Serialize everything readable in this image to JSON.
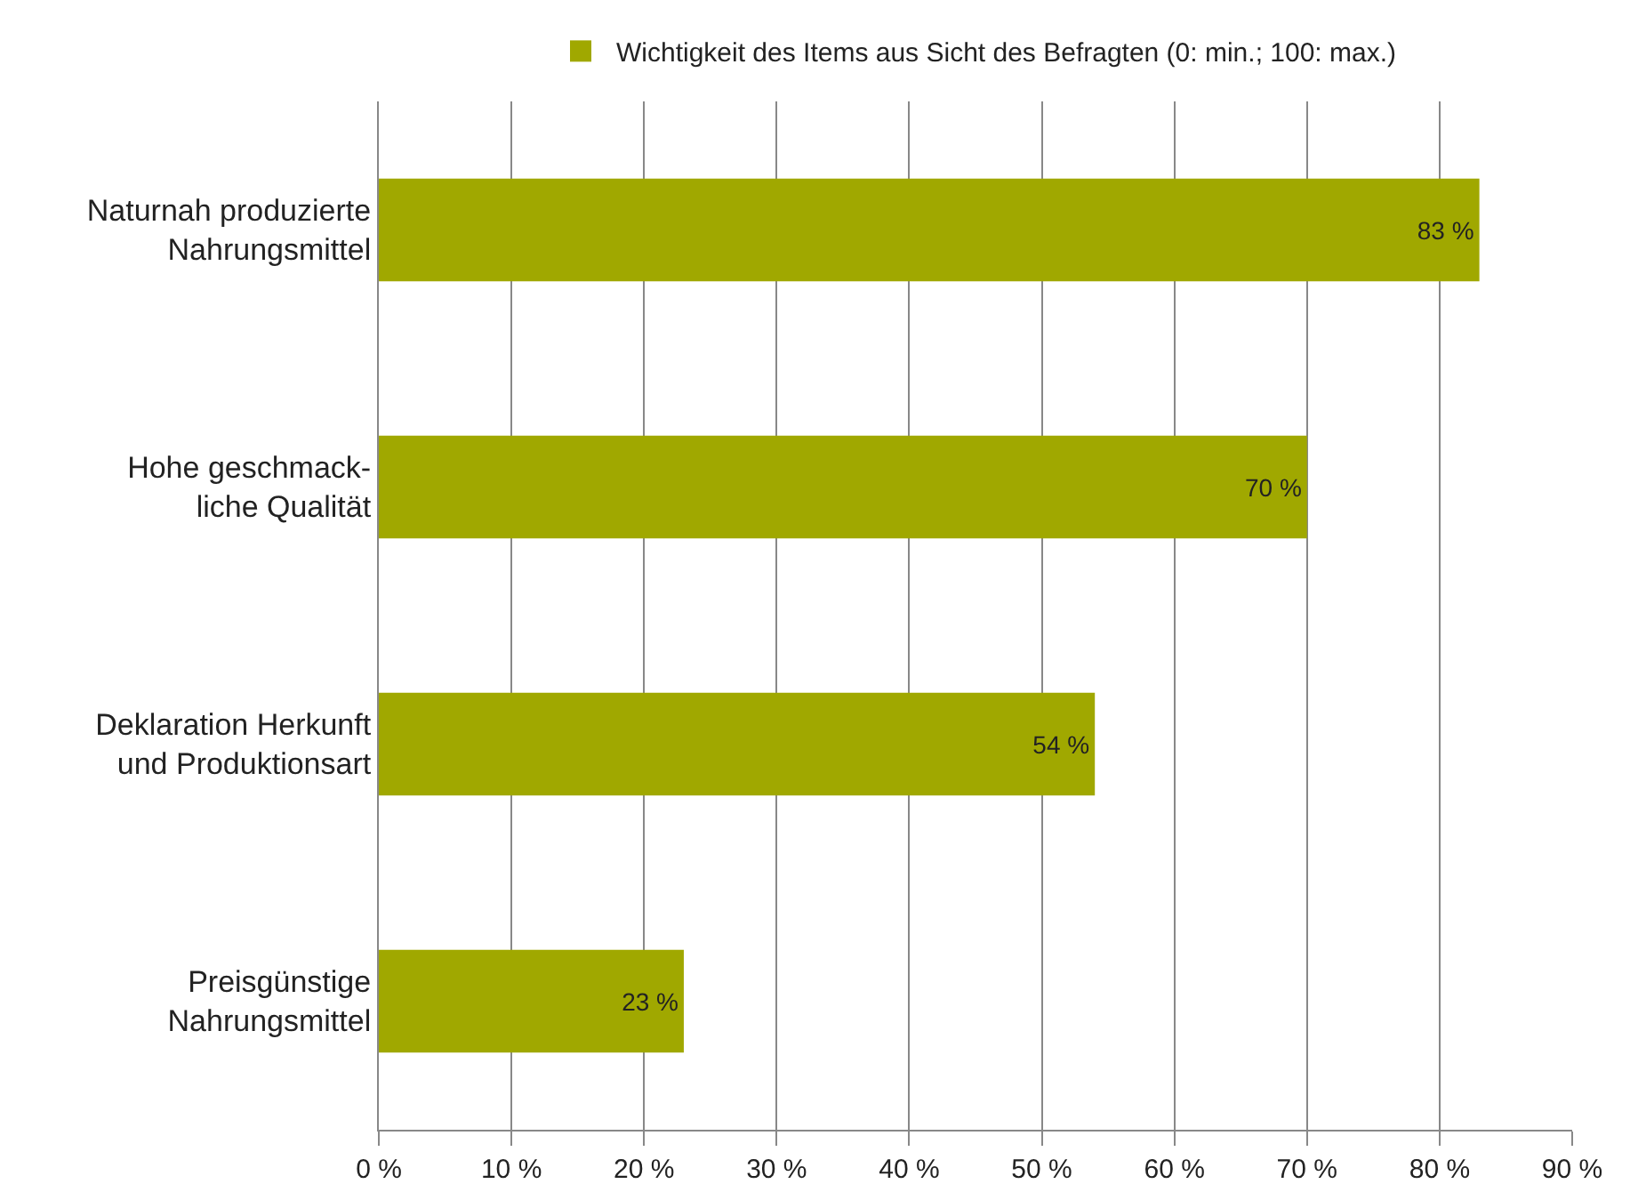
{
  "chart_data": {
    "type": "bar",
    "orientation": "horizontal",
    "categories": [
      "Naturnah produzierte\nNahrungsmittel",
      "Hohe geschmack-\nliche Qualität",
      "Deklaration Herkunft\nund Produktionsart",
      "Preisgünstige\nNahrungsmittel"
    ],
    "series": [
      {
        "name": "Wichtigkeit des Items aus Sicht des Befragten (0: min.; 100: max.)",
        "color": "#a0a800",
        "values": [
          83,
          70,
          54,
          23
        ],
        "value_labels": [
          "83 %",
          "70 %",
          "54 %",
          "23 %"
        ]
      }
    ],
    "xlim": [
      0,
      90
    ],
    "xticks": [
      {
        "value": 0,
        "label": "0 %"
      },
      {
        "value": 10,
        "label": "10 %"
      },
      {
        "value": 20,
        "label": "20 %"
      },
      {
        "value": 30,
        "label": "30 %"
      },
      {
        "value": 40,
        "label": "40 %"
      },
      {
        "value": 50,
        "label": "50 %"
      },
      {
        "value": 60,
        "label": "60 %"
      },
      {
        "value": 70,
        "label": "70 %"
      },
      {
        "value": 80,
        "label": "80 %"
      },
      {
        "value": 90,
        "label": "90 %"
      }
    ],
    "grid": "x",
    "legend": "top"
  }
}
